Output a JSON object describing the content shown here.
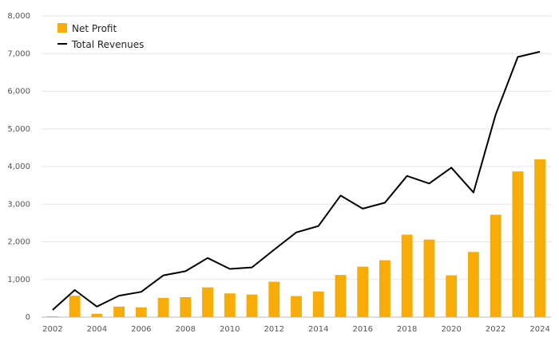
{
  "chart_data": {
    "type": "bar",
    "x": [
      "2002",
      "2003",
      "2004",
      "2005",
      "2006",
      "2007",
      "2008",
      "2009",
      "2010",
      "2011",
      "2012",
      "2013",
      "2014",
      "2015",
      "2016",
      "2017",
      "2018",
      "2019",
      "2020",
      "2021",
      "2022",
      "2023",
      "2024"
    ],
    "x_tick_labels": [
      "2002",
      "2004",
      "2006",
      "2008",
      "2010",
      "2012",
      "2014",
      "2016",
      "2018",
      "2020",
      "2022",
      "2024"
    ],
    "y_tick_labels": [
      "0",
      "1,000",
      "2,000",
      "3,000",
      "4,000",
      "5,000",
      "6,000",
      "7,000",
      "8,000"
    ],
    "ylim": [
      0,
      8000
    ],
    "grid": true,
    "legend_position": "top-left",
    "series": [
      {
        "name": "Net Profit",
        "type": "bar",
        "color": "#F7AC08",
        "values": [
          20,
          570,
          90,
          280,
          260,
          510,
          530,
          790,
          630,
          600,
          940,
          560,
          680,
          1120,
          1340,
          1510,
          2190,
          2060,
          1110,
          1730,
          2720,
          3870,
          4190
        ]
      },
      {
        "name": "Total Revenues",
        "type": "line",
        "color": "#000000",
        "values": [
          190,
          720,
          280,
          570,
          670,
          1110,
          1220,
          1570,
          1280,
          1320,
          1790,
          2250,
          2420,
          3230,
          2880,
          3040,
          3750,
          3550,
          3970,
          3310,
          5380,
          6910,
          7050
        ]
      }
    ],
    "title": "",
    "xlabel": "",
    "ylabel": ""
  }
}
